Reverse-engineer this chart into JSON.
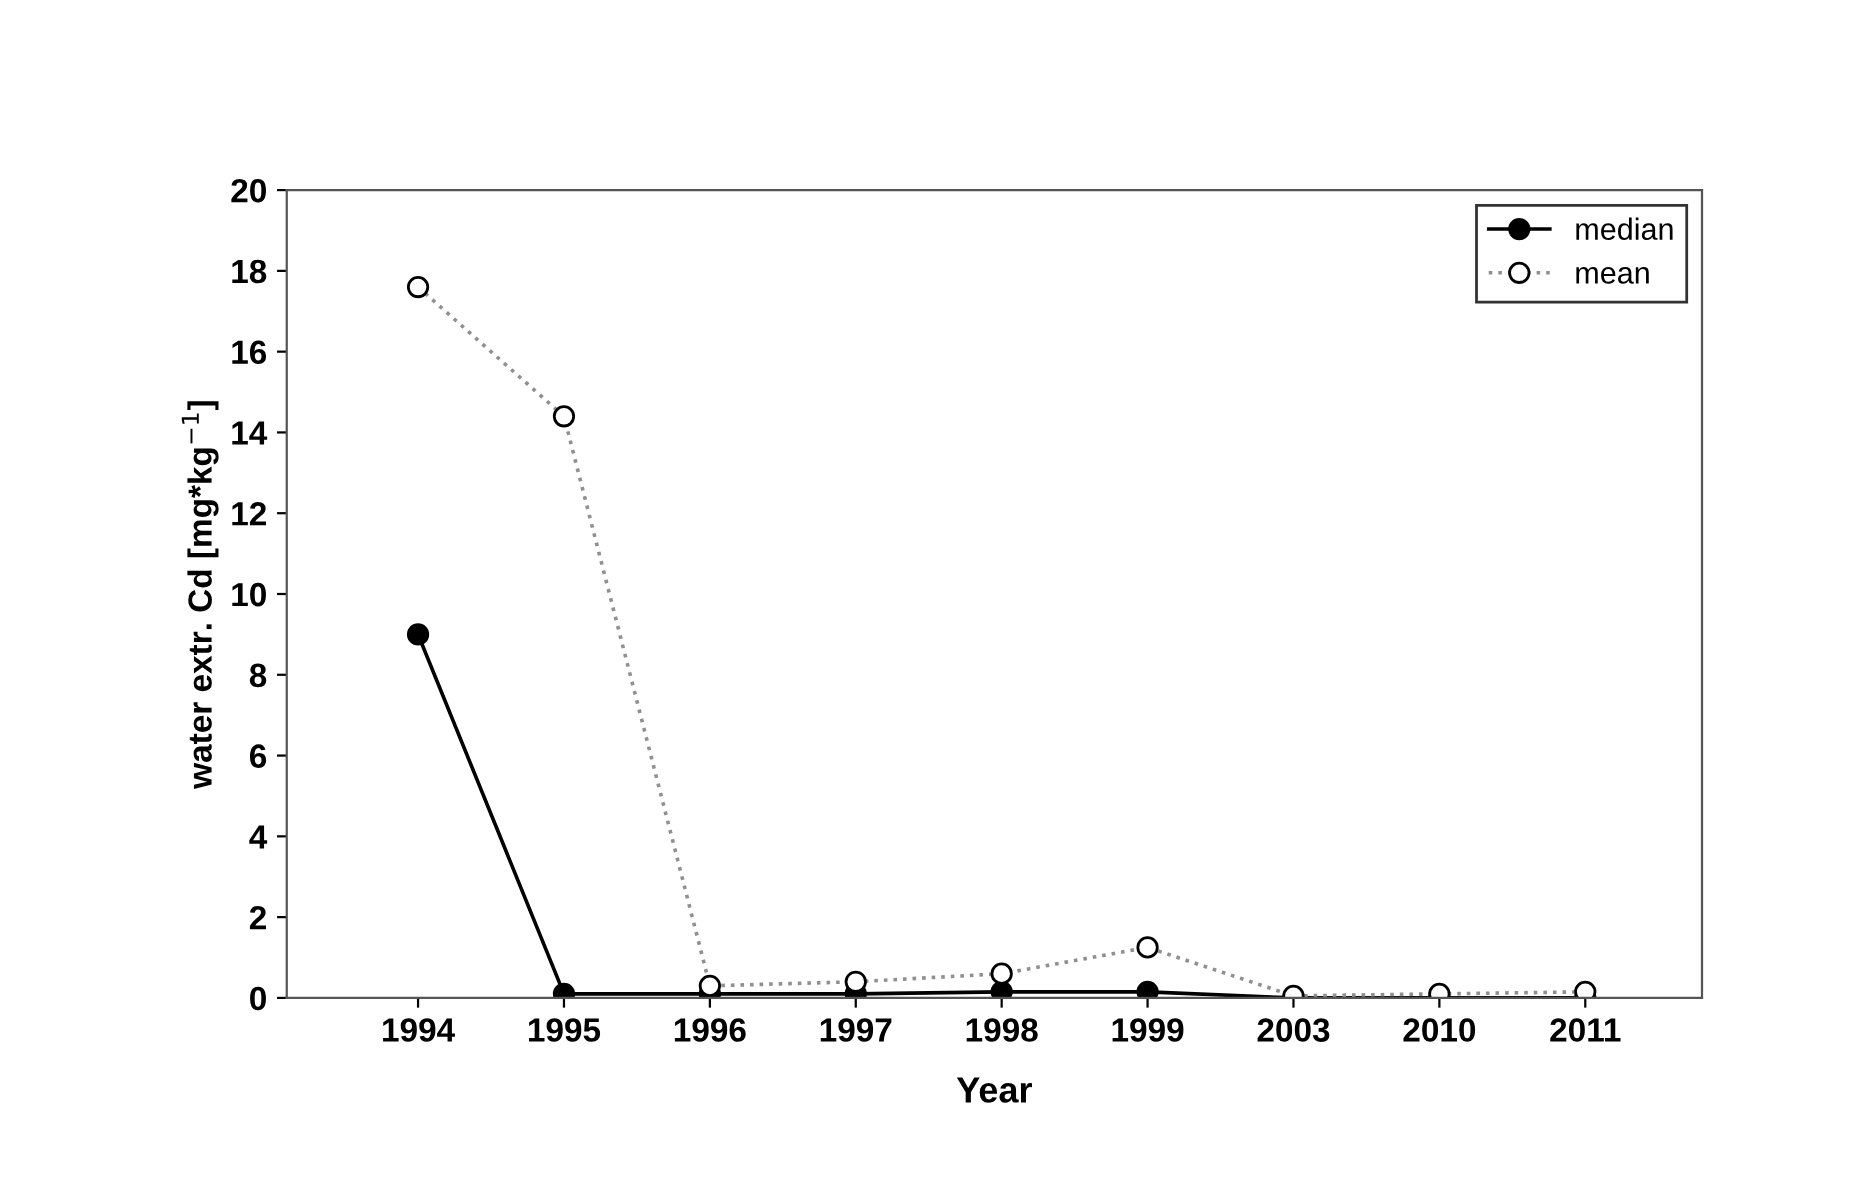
{
  "chart_data": {
    "type": "line",
    "xlabel": "Year",
    "ylabel": "water extr. Cd [mg*kg$^{−1}$]",
    "categories": [
      "1994",
      "1995",
      "1996",
      "1997",
      "1998",
      "1999",
      "2003",
      "2010",
      "2011"
    ],
    "series": [
      {
        "name": "median",
        "color": "#000000",
        "values": [
          9.0,
          0.1,
          0.1,
          0.1,
          0.15,
          0.15,
          0.0,
          0.0,
          0.0
        ],
        "line_style": "solid"
      },
      {
        "name": "mean",
        "color": "#909090",
        "values": [
          17.6,
          14.4,
          0.3,
          0.4,
          0.6,
          1.25,
          0.05,
          0.1,
          0.15
        ],
        "line_style": "dotted"
      }
    ],
    "ylim": [
      0,
      20
    ],
    "yticks": [
      0,
      2,
      4,
      6,
      8,
      10,
      12,
      14,
      16,
      18,
      20
    ],
    "marker": "circle",
    "grid": false,
    "legend": "top right"
  }
}
